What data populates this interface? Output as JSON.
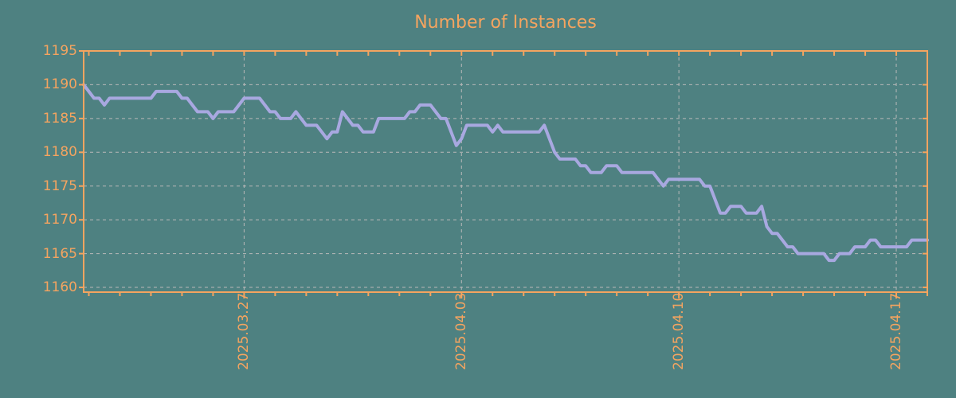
{
  "chart_data": {
    "type": "line",
    "title": "Number of Instances",
    "xlabel": "",
    "ylabel": "",
    "legend_position": "none",
    "grid": true,
    "ylim": [
      1159.3,
      1195
    ],
    "y_ticks": [
      1160,
      1165,
      1170,
      1175,
      1180,
      1185,
      1190,
      1195
    ],
    "x_major_ticks": [
      {
        "index": 31,
        "label": "2025.03.27"
      },
      {
        "index": 73,
        "label": "2025.04.03"
      },
      {
        "index": 115,
        "label": "2025.04.10"
      },
      {
        "index": 157,
        "label": "2025.04.17"
      }
    ],
    "x_minor_tick_start_index": 1,
    "x_minor_tick_step": 6,
    "sample_interval_hours": 4,
    "series": [
      {
        "name": "Number of Instances",
        "values": [
          1190,
          1189,
          1188,
          1188,
          1187,
          1188,
          1188,
          1188,
          1188,
          1188,
          1188,
          1188,
          1188,
          1188,
          1189,
          1189,
          1189,
          1189,
          1189,
          1188,
          1188,
          1187,
          1186,
          1186,
          1186,
          1185,
          1186,
          1186,
          1186,
          1186,
          1187,
          1188,
          1188,
          1188,
          1188,
          1187,
          1186,
          1186,
          1185,
          1185,
          1185,
          1186,
          1185,
          1184,
          1184,
          1184,
          1183,
          1182,
          1183,
          1183,
          1186,
          1185,
          1184,
          1184,
          1183,
          1183,
          1183,
          1185,
          1185,
          1185,
          1185,
          1185,
          1185,
          1186,
          1186,
          1187,
          1187,
          1187,
          1186,
          1185,
          1185,
          1183,
          1181,
          1182,
          1184,
          1184,
          1184,
          1184,
          1184,
          1183,
          1184,
          1183,
          1183,
          1183,
          1183,
          1183,
          1183,
          1183,
          1183,
          1184,
          1182,
          1180,
          1179,
          1179,
          1179,
          1179,
          1178,
          1178,
          1177,
          1177,
          1177,
          1178,
          1178,
          1178,
          1177,
          1177,
          1177,
          1177,
          1177,
          1177,
          1177,
          1176,
          1175,
          1176,
          1176,
          1176,
          1176,
          1176,
          1176,
          1176,
          1175,
          1175,
          1173,
          1171,
          1171,
          1172,
          1172,
          1172,
          1171,
          1171,
          1171,
          1172,
          1169,
          1168,
          1168,
          1167,
          1166,
          1166,
          1165,
          1165,
          1165,
          1165,
          1165,
          1165,
          1164,
          1164,
          1165,
          1165,
          1165,
          1166,
          1166,
          1166,
          1167,
          1167,
          1166,
          1166,
          1166,
          1166,
          1166,
          1166,
          1167,
          1167,
          1167,
          1167
        ]
      }
    ],
    "colors": {
      "background": "#4e8181",
      "axis": "#f4a460",
      "line": "#a8a8e0",
      "grid": "#b8b8b8"
    }
  }
}
